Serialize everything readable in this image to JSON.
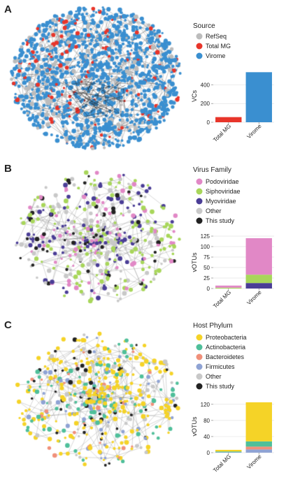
{
  "panels": [
    {
      "letter": "A",
      "legend": {
        "title": "Source",
        "items": [
          {
            "label": "RefSeq",
            "color": "#bcbcbc"
          },
          {
            "label": "Total MG",
            "color": "#e8352a"
          },
          {
            "label": "Virome",
            "color": "#3a8fd0"
          }
        ]
      },
      "network": {
        "node_colors": {
          "main": "#3a8fd0",
          "other": "#bcbcbc",
          "highlight": "#e8352a"
        }
      }
    },
    {
      "letter": "B",
      "legend": {
        "title": "Virus Family",
        "items": [
          {
            "label": "Podoviridae",
            "color": "#e188c6"
          },
          {
            "label": "Siphoviridae",
            "color": "#a8d65a"
          },
          {
            "label": "Myoviridae",
            "color": "#4a3d96"
          },
          {
            "label": "Other",
            "color": "#c8c8c8"
          },
          {
            "label": "This study",
            "color": "#222222"
          }
        ]
      }
    },
    {
      "letter": "C",
      "legend": {
        "title": "Host Phylum",
        "items": [
          {
            "label": "Proteobacteria",
            "color": "#f5d327"
          },
          {
            "label": "Actinobacteria",
            "color": "#4fbf9a"
          },
          {
            "label": "Bacteroidetes",
            "color": "#f0907a"
          },
          {
            "label": "Firmicutes",
            "color": "#8fa3d4"
          },
          {
            "label": "Other",
            "color": "#c8c8c8"
          },
          {
            "label": "This study",
            "color": "#222222"
          }
        ]
      }
    }
  ],
  "chart_data": [
    {
      "type": "bar",
      "categories": [
        "Total MG",
        "Virome"
      ],
      "series": [
        {
          "values": [
            55,
            535
          ],
          "colors": [
            "#e8352a",
            "#3a8fd0"
          ]
        }
      ],
      "ylabel": "VCs",
      "ylim": [
        0,
        560
      ],
      "yticks": [
        0,
        200,
        400
      ],
      "grid": true
    },
    {
      "type": "bar",
      "stacked": true,
      "categories": [
        "Total MG",
        "Virome"
      ],
      "series": [
        {
          "name": "Myoviridae",
          "color": "#4a3d96",
          "values": [
            0,
            13
          ]
        },
        {
          "name": "Siphoviridae",
          "color": "#a8d65a",
          "values": [
            2,
            20
          ]
        },
        {
          "name": "Podoviridae",
          "color": "#e188c6",
          "values": [
            5,
            87
          ]
        }
      ],
      "ylabel": "vOTUs",
      "ylim": [
        0,
        125
      ],
      "yticks": [
        0,
        25,
        50,
        75,
        100,
        125
      ],
      "grid": true
    },
    {
      "type": "bar",
      "stacked": true,
      "categories": [
        "Total MG",
        "Virome"
      ],
      "series": [
        {
          "name": "Firmicutes",
          "color": "#8fa3d4",
          "values": [
            1,
            8
          ]
        },
        {
          "name": "Bacteroidetes",
          "color": "#f0907a",
          "values": [
            0,
            7
          ]
        },
        {
          "name": "Actinobacteria",
          "color": "#4fbf9a",
          "values": [
            2,
            13
          ]
        },
        {
          "name": "Proteobacteria",
          "color": "#f5d327",
          "values": [
            4,
            97
          ]
        }
      ],
      "ylabel": "vOTUs",
      "ylim": [
        0,
        130
      ],
      "yticks": [
        0,
        40,
        80,
        120
      ],
      "grid": true
    }
  ]
}
